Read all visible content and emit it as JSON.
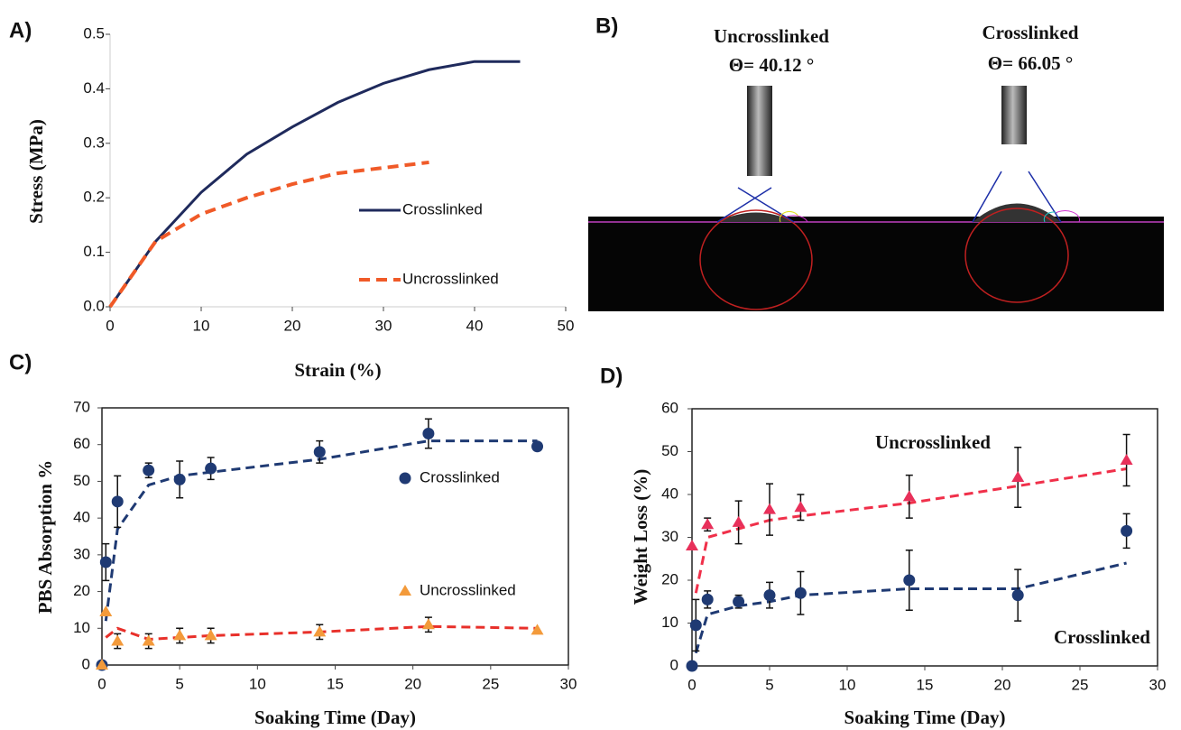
{
  "chart_data": [
    {
      "type": "line",
      "panel": "A)",
      "xlabel": "Strain (%)",
      "ylabel": "Stress (MPa)",
      "xlim": [
        0,
        50
      ],
      "xticks": [
        0,
        10,
        20,
        30,
        40,
        50
      ],
      "ylim": [
        0,
        0.5
      ],
      "yticks": [
        {
          "value": 0,
          "label": "0.0"
        },
        0.1,
        0.2,
        0.3,
        0.4,
        0.5
      ],
      "legend": "lower right",
      "frame": false,
      "series": [
        {
          "name": "Crosslinked",
          "color": "#1f2a5c",
          "dash": false,
          "x": [
            0,
            5,
            10,
            15,
            20,
            25,
            30,
            35,
            40,
            45
          ],
          "values": [
            0,
            0.12,
            0.21,
            0.28,
            0.33,
            0.375,
            0.41,
            0.435,
            0.45,
            0.45
          ]
        },
        {
          "name": "Uncrosslinked",
          "color": "#f05a28",
          "dash": true,
          "x": [
            0,
            5,
            10,
            15,
            20,
            25,
            30,
            35
          ],
          "values": [
            0,
            0.12,
            0.17,
            0.2,
            0.225,
            0.245,
            0.255,
            0.265
          ]
        }
      ]
    },
    {
      "type": "scatter",
      "panel": "C)",
      "xlabel": "Soaking Time (Day)",
      "ylabel": "PBS Absorption %",
      "xlim": [
        0,
        30
      ],
      "xticks": [
        0,
        5,
        10,
        15,
        20,
        25,
        30
      ],
      "ylim": [
        0,
        70
      ],
      "yticks": [
        0,
        10,
        20,
        30,
        40,
        50,
        60,
        70
      ],
      "legend": "right",
      "frame": true,
      "x": [
        0,
        0.25,
        1,
        3,
        5,
        7,
        14,
        21,
        28
      ],
      "series": [
        {
          "name": "Crosslinked",
          "color": "#1f3a73",
          "marker": "circle",
          "fit_color": "#1f3a73",
          "values": [
            0,
            28,
            44.5,
            53,
            50.5,
            53.5,
            58,
            63,
            59.5
          ],
          "errors": [
            null,
            5,
            7,
            2,
            5,
            3,
            3,
            4,
            1
          ],
          "fit": [
            null,
            12,
            37,
            49,
            51.5,
            52.5,
            56,
            61,
            61
          ]
        },
        {
          "name": "Uncrosslinked",
          "color": "#f39a3a",
          "marker": "triangle",
          "fit_color": "#e8302a",
          "values": [
            0,
            14.5,
            6.5,
            6.5,
            8,
            8,
            9,
            11,
            9.5
          ],
          "errors": [
            null,
            null,
            2,
            2,
            2,
            2,
            2,
            2,
            null
          ],
          "fit": [
            null,
            7.5,
            10,
            7,
            7.5,
            8,
            9,
            10.5,
            10
          ]
        }
      ]
    },
    {
      "type": "scatter",
      "panel": "D)",
      "xlabel": "Soaking Time (Day)",
      "ylabel": "Weight Loss (%)",
      "xlim": [
        0,
        30
      ],
      "xticks": [
        0,
        5,
        10,
        15,
        20,
        25,
        30
      ],
      "ylim": [
        0,
        60
      ],
      "yticks": [
        0,
        10,
        20,
        30,
        40,
        50,
        60
      ],
      "legend": "none",
      "frame": true,
      "x": [
        0,
        0.25,
        1,
        3,
        5,
        7,
        14,
        21,
        28
      ],
      "series": [
        {
          "name": "Uncrosslinked",
          "color": "#e8305a",
          "marker": "triangle",
          "fit_color": "#f0304a",
          "values": [
            28,
            null,
            33,
            33.5,
            36.5,
            37,
            39.5,
            44,
            48
          ],
          "errors": [
            null,
            null,
            1.5,
            5,
            6,
            3,
            5,
            7,
            6
          ],
          "fit": [
            null,
            17,
            30,
            32,
            34,
            35,
            38,
            42,
            46
          ]
        },
        {
          "name": "Crosslinked",
          "color": "#1f3a73",
          "marker": "circle",
          "fit_color": "#1f3a73",
          "values": [
            0,
            9.5,
            15.5,
            15,
            16.5,
            17,
            20,
            16.5,
            31.5
          ],
          "errors": [
            null,
            6,
            2,
            1.5,
            3,
            5,
            7,
            6,
            4
          ],
          "fit": [
            null,
            3,
            12,
            14,
            15,
            16.5,
            18,
            18,
            24
          ]
        }
      ]
    }
  ],
  "photo": {
    "panel": "B)",
    "samples": [
      {
        "name": "Uncrosslinked",
        "angle": "Θ= 40.12 °"
      },
      {
        "name": "Crosslinked",
        "angle": "Θ= 66.05 °"
      }
    ]
  }
}
